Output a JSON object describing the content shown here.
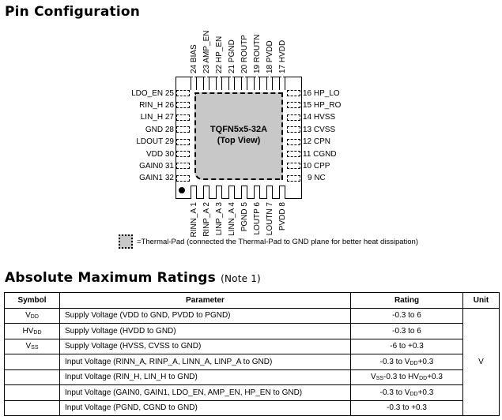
{
  "pin_config": {
    "title": "Pin Configuration",
    "package": "TQFN5x5-32A",
    "view": "(Top View)",
    "pins_top": [
      "24 BIAS",
      "23 AMP_EN",
      "22 HP_EN",
      "21 PGND",
      "20 ROUTP",
      "19 ROUTN",
      "18 PVDD",
      "17 HVDD"
    ],
    "pins_left": [
      "LDO_EN 25",
      "RIN_H 26",
      "LIN_H 27",
      "GND 28",
      "LDOUT 29",
      "VDD 30",
      "GAIN0 31",
      "GAIN1 32"
    ],
    "pins_right": [
      "16 HP_LO",
      "15 HP_RO",
      "14 HVSS",
      "13 CVSS",
      "12 CPN",
      "11 CGND",
      "10 CPP",
      "9 NC"
    ],
    "pins_bottom": [
      "RINN_A 1",
      "RINP_A 2",
      "LINP_A 3",
      "LINN_A 4",
      "PGND 5",
      "LOUTP 6",
      "LOUTN 7",
      "PVDD 8"
    ],
    "legend": "=Thermal-Pad (connected the Thermal-Pad to GND plane for better heat dissipation)",
    "thermal_pad_color": "#c8c8c8"
  },
  "ratings": {
    "title": "Absolute Maximum Ratings",
    "note": "(Note 1)",
    "headers": [
      "Symbol",
      "Parameter",
      "Rating",
      "Unit"
    ],
    "unit": "V",
    "rows": [
      {
        "symbol": [
          {
            "t": "V"
          },
          {
            "t": "DD",
            "sub": true
          }
        ],
        "parameter": "Supply Voltage (VDD to GND, PVDD to PGND)",
        "rating": [
          {
            "t": "-0.3 to 6"
          }
        ]
      },
      {
        "symbol": [
          {
            "t": "HV"
          },
          {
            "t": "DD",
            "sub": true
          }
        ],
        "parameter": "Supply Voltage (HVDD to GND)",
        "rating": [
          {
            "t": "-0.3 to 6"
          }
        ]
      },
      {
        "symbol": [
          {
            "t": "V"
          },
          {
            "t": "SS",
            "sub": true
          }
        ],
        "parameter": "Supply Voltage (HVSS, CVSS to GND)",
        "rating": [
          {
            "t": "-6 to +0.3"
          }
        ]
      },
      {
        "symbol": [],
        "parameter": "Input Voltage (RINN_A, RINP_A, LINN_A, LINP_A to GND)",
        "rating": [
          {
            "t": "-0.3 to V"
          },
          {
            "t": "DD",
            "sub": true
          },
          {
            "t": "+0.3"
          }
        ]
      },
      {
        "symbol": [],
        "parameter": "Input Voltage (RIN_H, LIN_H to GND)",
        "rating": [
          {
            "t": "V"
          },
          {
            "t": "SS",
            "sub": true
          },
          {
            "t": "-0.3 to HV"
          },
          {
            "t": "DD",
            "sub": true
          },
          {
            "t": "+0.3"
          }
        ]
      },
      {
        "symbol": [],
        "parameter": "Input Voltage (GAIN0, GAIN1, LDO_EN, AMP_EN, HP_EN to GND)",
        "rating": [
          {
            "t": "-0.3 to V"
          },
          {
            "t": "DD",
            "sub": true
          },
          {
            "t": "+0.3"
          }
        ]
      },
      {
        "symbol": [],
        "parameter": "Input Voltage (PGND, CGND to GND)",
        "rating": [
          {
            "t": "-0.3 to +0.3"
          }
        ]
      }
    ]
  }
}
